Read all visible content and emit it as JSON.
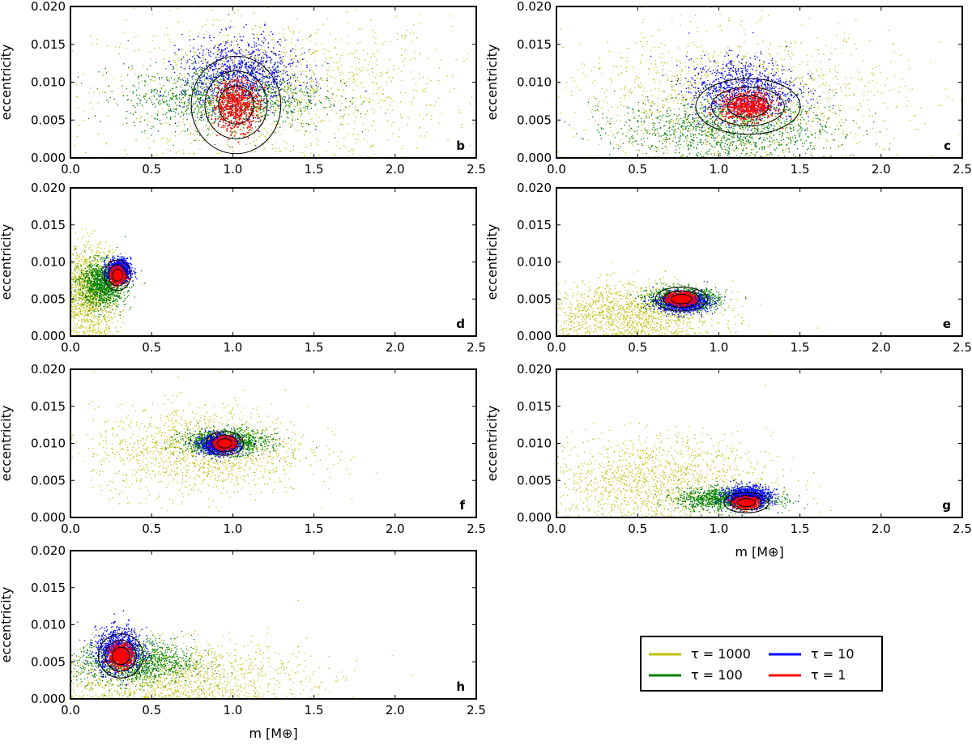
{
  "chart_data": {
    "type": "scatter",
    "title": "",
    "legend": {
      "placement": "bottom-right",
      "entries": [
        {
          "label": "τ = 1000",
          "color": "#bfbf00"
        },
        {
          "label": "τ = 100",
          "color": "#008000"
        },
        {
          "label": "τ = 10",
          "color": "#0000ff"
        },
        {
          "label": "τ = 1",
          "color": "#ff0000"
        }
      ]
    },
    "panels": [
      {
        "label": "b",
        "xlabel": "",
        "ylabel": "eccentricity",
        "xlim": [
          0.0,
          2.5
        ],
        "ylim": [
          0.0,
          0.02
        ],
        "clusters": {
          "tau1000": {
            "cx": 1.25,
            "cy": 0.009,
            "sx": 0.9,
            "sy": 0.008
          },
          "tau100": {
            "cx": 0.95,
            "cy": 0.008,
            "sx": 0.5,
            "sy": 0.0035
          },
          "tau10": {
            "cx": 1.05,
            "cy": 0.011,
            "sx": 0.3,
            "sy": 0.004
          },
          "tau1": {
            "cx": 1.02,
            "cy": 0.007,
            "sx": 0.12,
            "sy": 0.0028
          }
        }
      },
      {
        "label": "c",
        "xlabel": "",
        "ylabel": "eccentricity",
        "xlim": [
          0.0,
          2.5
        ],
        "ylim": [
          0.0,
          0.02
        ],
        "clusters": {
          "tau1000": {
            "cx": 1.1,
            "cy": 0.008,
            "sx": 0.85,
            "sy": 0.007
          },
          "tau100": {
            "cx": 1.05,
            "cy": 0.004,
            "sx": 0.55,
            "sy": 0.0035
          },
          "tau10": {
            "cx": 1.15,
            "cy": 0.009,
            "sx": 0.28,
            "sy": 0.0035
          },
          "tau1": {
            "cx": 1.18,
            "cy": 0.0068,
            "sx": 0.14,
            "sy": 0.0016
          }
        }
      },
      {
        "label": "d",
        "xlabel": "",
        "ylabel": "eccentricity",
        "xlim": [
          0.0,
          2.5
        ],
        "ylim": [
          0.0,
          0.02
        ],
        "clusters": {
          "tau1000": {
            "cx": 0.12,
            "cy": 0.006,
            "sx": 0.15,
            "sy": 0.005
          },
          "tau100": {
            "cx": 0.2,
            "cy": 0.007,
            "sx": 0.12,
            "sy": 0.0025
          },
          "tau10": {
            "cx": 0.3,
            "cy": 0.0088,
            "sx": 0.06,
            "sy": 0.0013
          },
          "tau1": {
            "cx": 0.29,
            "cy": 0.0082,
            "sx": 0.035,
            "sy": 0.0009
          }
        }
      },
      {
        "label": "e",
        "xlabel": "",
        "ylabel": "eccentricity",
        "xlim": [
          0.0,
          2.5
        ],
        "ylim": [
          0.0,
          0.02
        ],
        "clusters": {
          "tau1000": {
            "cx": 0.45,
            "cy": 0.003,
            "sx": 0.45,
            "sy": 0.0035
          },
          "tau100": {
            "cx": 0.78,
            "cy": 0.005,
            "sx": 0.18,
            "sy": 0.0012
          },
          "tau10": {
            "cx": 0.78,
            "cy": 0.0045,
            "sx": 0.13,
            "sy": 0.0011
          },
          "tau1": {
            "cx": 0.77,
            "cy": 0.005,
            "sx": 0.07,
            "sy": 0.0007
          }
        }
      },
      {
        "label": "f",
        "xlabel": "",
        "ylabel": "eccentricity",
        "xlim": [
          0.0,
          2.5
        ],
        "ylim": [
          0.0,
          0.02
        ],
        "clusters": {
          "tau1000": {
            "cx": 0.8,
            "cy": 0.009,
            "sx": 0.55,
            "sy": 0.005
          },
          "tau100": {
            "cx": 0.95,
            "cy": 0.0102,
            "sx": 0.22,
            "sy": 0.0014
          },
          "tau10": {
            "cx": 0.92,
            "cy": 0.0098,
            "sx": 0.1,
            "sy": 0.0011
          },
          "tau1": {
            "cx": 0.95,
            "cy": 0.01,
            "sx": 0.05,
            "sy": 0.0007
          }
        }
      },
      {
        "label": "g",
        "xlabel": "m [M⊕]",
        "ylabel": "eccentricity",
        "xlim": [
          0.0,
          2.5
        ],
        "ylim": [
          0.0,
          0.02
        ],
        "clusters": {
          "tau1000": {
            "cx": 0.6,
            "cy": 0.005,
            "sx": 0.6,
            "sy": 0.005
          },
          "tau100": {
            "cx": 1.05,
            "cy": 0.0025,
            "sx": 0.25,
            "sy": 0.0012
          },
          "tau10": {
            "cx": 1.18,
            "cy": 0.0028,
            "sx": 0.12,
            "sy": 0.0012
          },
          "tau1": {
            "cx": 1.17,
            "cy": 0.002,
            "sx": 0.06,
            "sy": 0.0006
          }
        }
      },
      {
        "label": "h",
        "xlabel": "m [M⊕]",
        "ylabel": "eccentricity",
        "xlim": [
          0.0,
          2.5
        ],
        "ylim": [
          0.0,
          0.02
        ],
        "clusters": {
          "tau1000": {
            "cx": 0.6,
            "cy": 0.003,
            "sx": 0.7,
            "sy": 0.004
          },
          "tau100": {
            "cx": 0.4,
            "cy": 0.005,
            "sx": 0.3,
            "sy": 0.0025
          },
          "tau10": {
            "cx": 0.3,
            "cy": 0.0065,
            "sx": 0.12,
            "sy": 0.0025
          },
          "tau1": {
            "cx": 0.31,
            "cy": 0.0058,
            "sx": 0.06,
            "sy": 0.0013
          }
        }
      }
    ],
    "xticks": [
      "0.0",
      "0.5",
      "1.0",
      "1.5",
      "2.0",
      "2.5"
    ],
    "yticks": [
      "0.000",
      "0.005",
      "0.010",
      "0.015",
      "0.020"
    ]
  }
}
